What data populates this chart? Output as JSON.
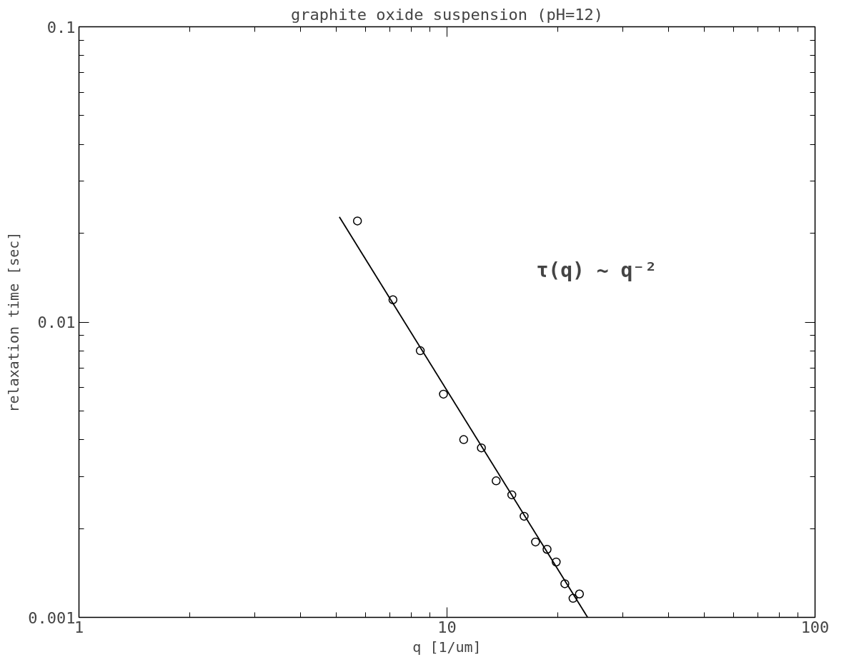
{
  "chart_data": {
    "type": "scatter",
    "title": "graphite oxide suspension (pH=12)",
    "xlabel": "q [1/um]",
    "ylabel": "relaxation time [sec]",
    "log": "xy",
    "grid": false,
    "marker": "circle",
    "xlim": [
      1,
      100
    ],
    "ylim": [
      0.001,
      0.1
    ],
    "xticks": [
      1,
      10,
      100
    ],
    "yticks": [
      0.001,
      0.01,
      0.1
    ],
    "annotations": [
      "τ(q) ~ q⁻²"
    ],
    "series": [
      {
        "color": "#000000",
        "x": [
          5.71,
          7.13,
          8.46,
          9.78,
          11.1,
          12.4,
          13.6,
          15.0,
          16.2,
          17.4,
          18.7,
          19.8,
          20.9,
          22.0,
          22.9
        ],
        "values": [
          0.022,
          0.0119,
          0.008,
          0.0057,
          0.004,
          0.00375,
          0.0029,
          0.0026,
          0.0022,
          0.0018,
          0.0017,
          0.00154,
          0.0013,
          0.00116,
          0.0012
        ]
      },
      {
        "type": "line",
        "marker": "none",
        "color": "#000000",
        "line_style": "solid",
        "x": [
          5.1,
          24.1
        ],
        "values": [
          0.0227,
          0.001
        ]
      }
    ]
  }
}
